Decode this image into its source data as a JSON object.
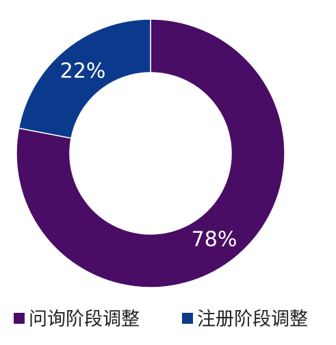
{
  "chart_data": {
    "type": "pie",
    "style": "donut",
    "slices": [
      {
        "name": "问询阶段调整",
        "value": 78,
        "label": "78%",
        "color": "#4a0d66"
      },
      {
        "name": "注册阶段调整",
        "value": 22,
        "label": "22%",
        "color": "#0b3a8c"
      }
    ],
    "legend": {
      "position": "bottom",
      "items": [
        "问询阶段调整",
        "注册阶段调整"
      ]
    }
  }
}
